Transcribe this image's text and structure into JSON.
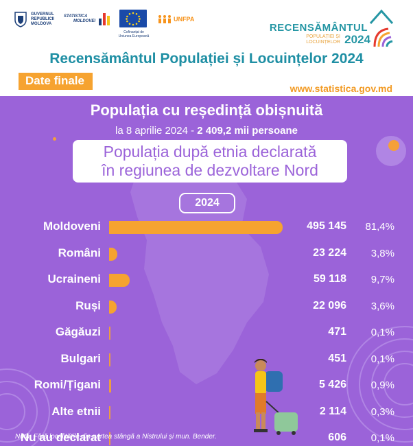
{
  "logos": {
    "gov_line1": "GUVERNUL",
    "gov_line2": "REPUBLICII",
    "gov_line3": "MOLDOVA",
    "stat_line1": "STATISTICA",
    "stat_line2": "MOLDOVEI",
    "eu_caption_1": "Cofinanțat de",
    "eu_caption_2": "Uniunea Europeană",
    "unfpa": "UNFPA",
    "recens_title": "RECENSĂMÂNTUL",
    "recens_sub1": "POPULAȚIEI ȘI",
    "recens_sub2": "LOCUINȚELOR",
    "recens_year": "2024"
  },
  "header": {
    "title": "Recensământul Populației și Locuințelor 2024",
    "badge": "Date finale",
    "website": "www.statistica.gov.md"
  },
  "intro": {
    "headline": "Populația cu reședință obișnuită",
    "date_text": "la 8 aprilie 2024 - ",
    "total_text": "2 409,2 mii persoane",
    "box_line1": "Populația după etnia declarată",
    "box_line2": "în regiunea de dezvoltare Nord",
    "year": "2024"
  },
  "chart_data": {
    "type": "bar",
    "orientation": "horizontal",
    "title": "Populația după etnia declarată în regiunea de dezvoltare Nord",
    "year": "2024",
    "categories": [
      "Moldoveni",
      "Români",
      "Ucraineni",
      "Ruși",
      "Găgăuzi",
      "Bulgari",
      "Romi/Țigani",
      "Alte etnii",
      "Nu au declarat"
    ],
    "values": [
      495145,
      23224,
      59118,
      22096,
      471,
      451,
      5426,
      2114,
      606
    ],
    "value_labels": [
      "495 145",
      "23 224",
      "59 118",
      "22 096",
      "471",
      "451",
      "5 426",
      "2 114",
      "606"
    ],
    "percent_labels": [
      "81,4%",
      "3,8%",
      "9,7%",
      "3,6%",
      "0,1%",
      "0,1%",
      "0,9%",
      "0,3%",
      "0,1%"
    ],
    "xlim": [
      0,
      495145
    ],
    "bar_color": "#f6a330"
  },
  "note": "Notă: Fără localitățile din partea stângă a Nistrului și mun. Bender.",
  "colors": {
    "purple": "#9b63d9",
    "orange": "#f6a330",
    "teal": "#1f8fa4"
  }
}
